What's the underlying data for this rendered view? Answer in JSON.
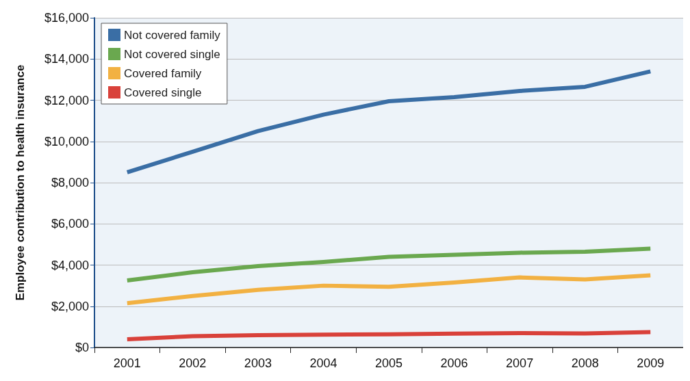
{
  "chart_data": {
    "type": "line",
    "ylabel": "Employee contribution to health insurance",
    "categories": [
      "2001",
      "2002",
      "2003",
      "2004",
      "2005",
      "2006",
      "2007",
      "2008",
      "2009"
    ],
    "series": [
      {
        "name": "Not covered family",
        "color": "#3a6ea5",
        "values": [
          8500,
          9500,
          10500,
          11300,
          11950,
          12150,
          12450,
          12650,
          13400
        ]
      },
      {
        "name": "Not covered single",
        "color": "#6aa84f",
        "values": [
          3250,
          3650,
          3950,
          4150,
          4400,
          4500,
          4600,
          4650,
          4800
        ]
      },
      {
        "name": "Covered family",
        "color": "#f2b142",
        "values": [
          2150,
          2500,
          2800,
          3000,
          2950,
          3150,
          3400,
          3300,
          3500
        ]
      },
      {
        "name": "Covered single",
        "color": "#d9413a",
        "values": [
          400,
          550,
          600,
          620,
          640,
          670,
          700,
          680,
          750
        ]
      }
    ],
    "ylim": [
      0,
      16000
    ],
    "yticks": [
      {
        "value": 0,
        "label": "$0"
      },
      {
        "value": 2000,
        "label": "$2,000"
      },
      {
        "value": 4000,
        "label": "$4,000"
      },
      {
        "value": 6000,
        "label": "$6,000"
      },
      {
        "value": 8000,
        "label": "$8,000"
      },
      {
        "value": 10000,
        "label": "$10,000"
      },
      {
        "value": 12000,
        "label": "$12,000"
      },
      {
        "value": 14000,
        "label": "$14,000"
      },
      {
        "value": 16000,
        "label": "$16,000"
      }
    ],
    "grid": "y",
    "legend": "top left",
    "marker": "none",
    "line_style": "solid"
  }
}
